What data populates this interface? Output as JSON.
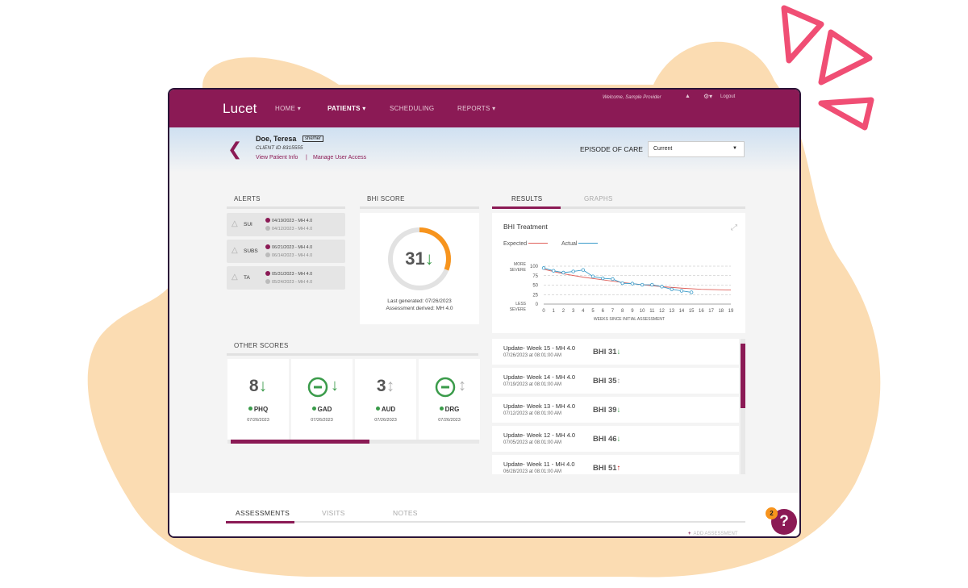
{
  "nav": {
    "logo": "Lucet",
    "items": [
      {
        "label": "HOME ▾",
        "active": false
      },
      {
        "label": "PATIENTS ▾",
        "active": true
      },
      {
        "label": "SCHEDULING",
        "active": false
      },
      {
        "label": "REPORTS ▾",
        "active": false
      }
    ],
    "welcome": "Welcome, Sample Provider",
    "logout": "Logout"
  },
  "patient": {
    "name": "Doe, Teresa",
    "pronouns": "she/her",
    "client_id": "CLIENT ID 8315555",
    "view_info": "View Patient Info",
    "separator": "|",
    "manage_access": "Manage User Access",
    "episode_label": "EPISODE OF CARE",
    "episode_value": "Current"
  },
  "alerts": {
    "title": "ALERTS",
    "items": [
      {
        "name": "SUI",
        "line1": "04/19/2023 - MH 4.0",
        "line2": "04/12/2023 - MH 4.0"
      },
      {
        "name": "SUBS",
        "line1": "06/21/2023 - MH 4.0",
        "line2": "06/14/2023 - MH 4.0"
      },
      {
        "name": "TA",
        "line1": "05/31/2023 - MH 4.0",
        "line2": "05/24/2023 - MH 4.0"
      }
    ]
  },
  "bhi": {
    "title": "BHI SCORE",
    "score": "31",
    "arrow": "↓",
    "gauge_fraction": 0.31,
    "last_generated": "Last generated: 07/26/2023",
    "derived": "Assessment derived: MH 4.0"
  },
  "other_scores": {
    "title": "OTHER SCORES",
    "items": [
      {
        "value": "8",
        "arrow": "↓",
        "trend": "down",
        "name": "PHQ",
        "date": "07/26/2023",
        "type": "number"
      },
      {
        "value": "",
        "arrow": "↓",
        "trend": "down",
        "name": "GAD",
        "date": "07/26/2023",
        "type": "minus"
      },
      {
        "value": "3",
        "arrow": "↕",
        "trend": "neutral",
        "name": "AUD",
        "date": "07/26/2023",
        "type": "number"
      },
      {
        "value": "",
        "arrow": "↕",
        "trend": "neutral",
        "name": "DRG",
        "date": "07/26/2023",
        "type": "minus"
      }
    ]
  },
  "tabs": {
    "results": "RESULTS",
    "graphs": "GRAPHS"
  },
  "chart_data": {
    "type": "line",
    "title": "BHI Treatment",
    "legend": [
      "Expected",
      "Actual"
    ],
    "y_top_label": [
      "MORE",
      "SEVERE"
    ],
    "y_bottom_label": [
      "LESS",
      "SEVERE"
    ],
    "xlabel": "WEEKS SINCE INITIAL ASSESSMENT",
    "x": [
      0,
      1,
      2,
      3,
      4,
      5,
      6,
      7,
      8,
      9,
      10,
      11,
      12,
      13,
      14,
      15,
      16,
      17,
      18,
      19
    ],
    "yticks": [
      100,
      75,
      50,
      25,
      0
    ],
    "ylim": [
      0,
      100
    ],
    "xlim": [
      0,
      19
    ],
    "series": [
      {
        "name": "Expected",
        "color": "#e0605a",
        "x": [
          0,
          2,
          4,
          6,
          8,
          10,
          12,
          14,
          16,
          19
        ],
        "values": [
          92,
          80,
          71,
          64,
          57,
          51,
          46,
          42,
          39,
          37
        ]
      },
      {
        "name": "Actual",
        "color": "#3a9bc9",
        "x": [
          0,
          1,
          2,
          3,
          4,
          5,
          6,
          7,
          8,
          9,
          10,
          11,
          12,
          13,
          14,
          15
        ],
        "values": [
          95,
          88,
          83,
          86,
          90,
          73,
          68,
          66,
          55,
          54,
          51,
          51,
          46,
          39,
          35,
          31
        ]
      }
    ]
  },
  "results": [
    {
      "title": "Update- Week 15 - MH 4.0",
      "date": "07/26/2023 at 08:01:00 AM",
      "score": "BHI 31",
      "arrow": "↓",
      "trend": "down"
    },
    {
      "title": "Update- Week 14 - MH 4.0",
      "date": "07/19/2023 at 08:01:00 AM",
      "score": "BHI 35",
      "arrow": "↕",
      "trend": "neutral"
    },
    {
      "title": "Update- Week 13 - MH 4.0",
      "date": "07/12/2023 at 08:01:00 AM",
      "score": "BHI 39",
      "arrow": "↓",
      "trend": "down"
    },
    {
      "title": "Update- Week 12 - MH 4.0",
      "date": "07/05/2023 at 08:01:00 AM",
      "score": "BHI 46",
      "arrow": "↓",
      "trend": "down"
    },
    {
      "title": "Update- Week 11 - MH 4.0",
      "date": "06/28/2023 at 08:01:00 AM",
      "score": "BHI 51",
      "arrow": "↑",
      "trend": "up"
    }
  ],
  "bottom_tabs": {
    "assessments": "ASSESSMENTS",
    "visits": "VISITS",
    "notes": "NOTES",
    "add_assessment": "ADD ASSESSMENT"
  },
  "help": {
    "label": "?",
    "badge": "2"
  },
  "colors": {
    "brand": "#8b1a55",
    "gauge": "#f7941d",
    "trend_down": "#3a9b4a",
    "trend_up": "#c41b1b"
  }
}
